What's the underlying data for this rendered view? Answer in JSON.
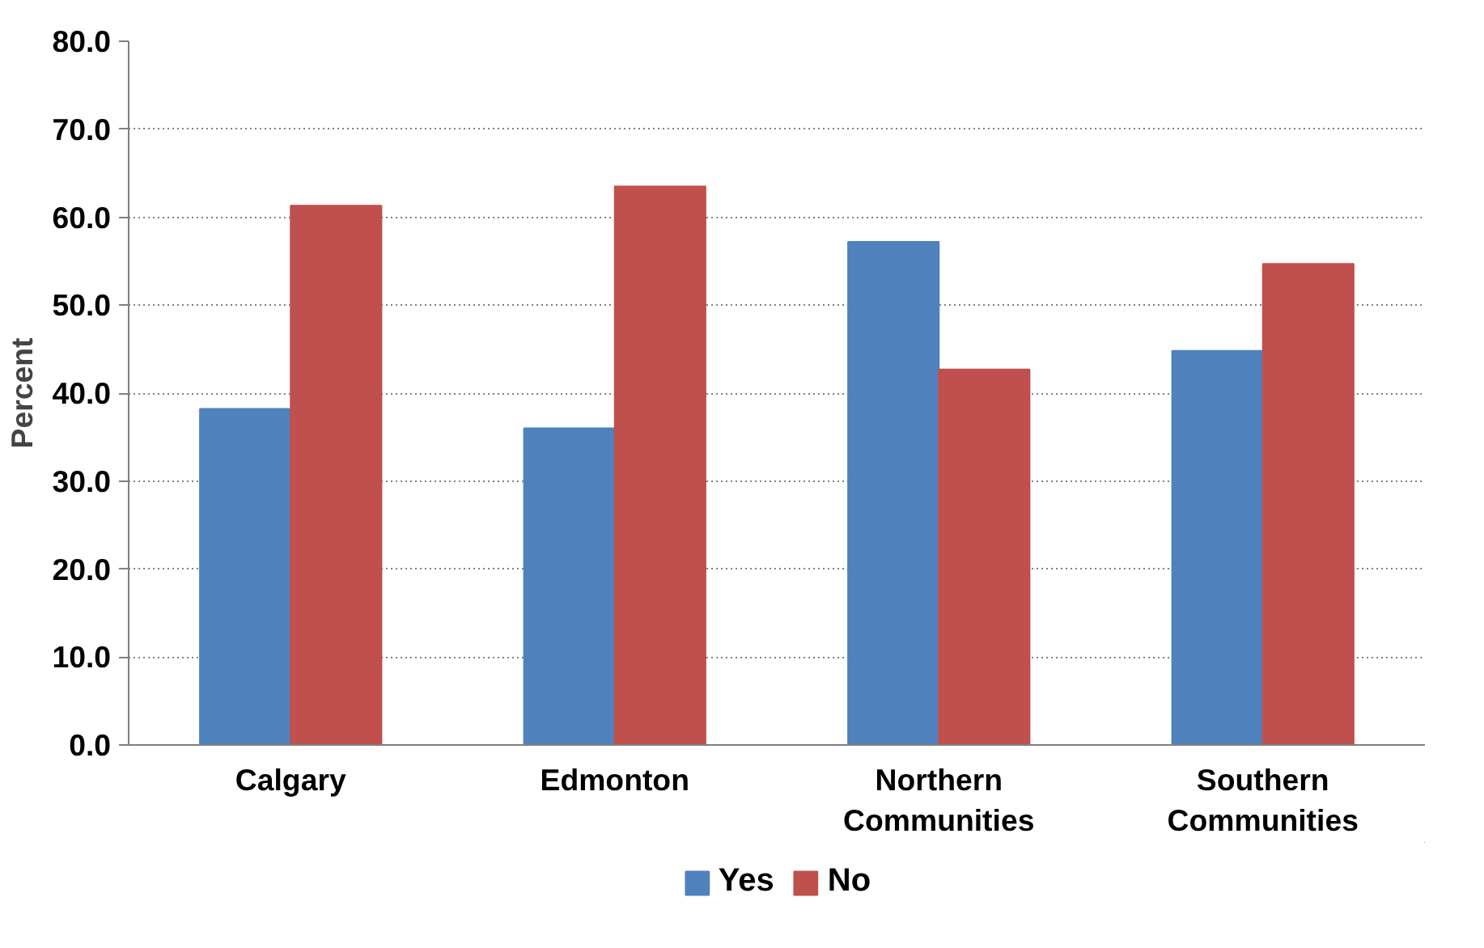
{
  "chart_data": {
    "type": "bar",
    "ylabel": "Percent",
    "categories": [
      "Calgary",
      "Edmonton",
      "Northern Communities",
      "Southern Communities"
    ],
    "series": [
      {
        "name": "Yes",
        "color": "#4f81bd",
        "values": [
          38.2,
          36.0,
          57.2,
          44.8
        ]
      },
      {
        "name": "No",
        "color": "#c0504d",
        "values": [
          61.3,
          63.5,
          42.7,
          54.7
        ]
      }
    ],
    "ylim": [
      0,
      80
    ],
    "yticks": [
      {
        "value": 0,
        "label": "0.0"
      },
      {
        "value": 10,
        "label": "10.0"
      },
      {
        "value": 20,
        "label": "20.0"
      },
      {
        "value": 30,
        "label": "30.0"
      },
      {
        "value": 40,
        "label": "40.0"
      },
      {
        "value": 50,
        "label": "50.0"
      },
      {
        "value": 60,
        "label": "60.0"
      },
      {
        "value": 70,
        "label": "70.0"
      },
      {
        "value": 80,
        "label": "80.0"
      }
    ],
    "grid": "y",
    "legend": "bottom"
  }
}
